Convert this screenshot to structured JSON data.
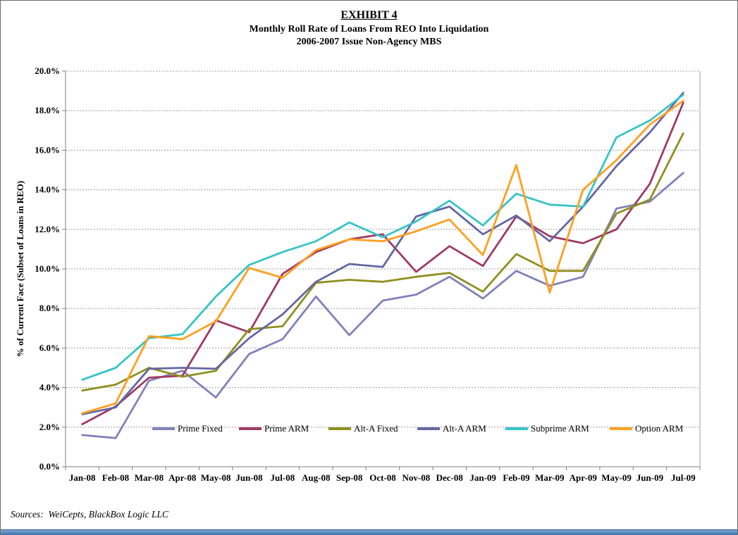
{
  "page": {
    "title": "EXHIBIT 4",
    "subtitle1": "Monthly Roll Rate of Loans From REO Into Liquidation",
    "subtitle2": "2006-2007 Issue Non-Agency MBS",
    "source_note": "Sources:  WeiCepts, BlackBox Logic LLC"
  },
  "chart_data": {
    "type": "line",
    "title": "Monthly Roll Rate of Loans From REO Into Liquidation",
    "subtitle": "2006-2007 Issue Non-Agency MBS",
    "xlabel": "",
    "ylabel": "% of Current Face (Subset of Loans in REO)",
    "ylim": [
      0,
      20
    ],
    "ytick_step": 2,
    "ytick_format": "0.0%",
    "grid": "horizontal-dashed",
    "legend_position": "inside-bottom",
    "categories": [
      "Jan-08",
      "Feb-08",
      "Mar-08",
      "Apr-08",
      "May-08",
      "Jun-08",
      "Jul-08",
      "Aug-08",
      "Sep-08",
      "Oct-08",
      "Nov-08",
      "Dec-08",
      "Jan-09",
      "Feb-09",
      "Mar-09",
      "Apr-09",
      "May-09",
      "Jun-09",
      "Jul-09"
    ],
    "series": [
      {
        "name": "Prime Fixed",
        "color": "#8182BA",
        "values": [
          1.6,
          1.45,
          4.35,
          4.85,
          3.5,
          5.7,
          6.45,
          8.6,
          6.65,
          8.4,
          8.7,
          9.6,
          8.5,
          9.9,
          9.15,
          9.6,
          13.05,
          13.4,
          14.85
        ]
      },
      {
        "name": "Prime ARM",
        "color": "#9E3A64",
        "values": [
          2.15,
          3.05,
          4.5,
          4.6,
          7.4,
          6.8,
          9.75,
          10.85,
          11.5,
          11.75,
          9.85,
          11.15,
          10.15,
          12.65,
          11.65,
          11.3,
          12.0,
          14.3,
          18.4
        ]
      },
      {
        "name": "Alt-A Fixed",
        "color": "#8F8F1F",
        "values": [
          3.85,
          4.15,
          5.0,
          4.55,
          4.85,
          6.95,
          7.1,
          9.3,
          9.45,
          9.35,
          9.6,
          9.8,
          8.85,
          10.75,
          9.9,
          9.9,
          12.8,
          13.5,
          16.85
        ]
      },
      {
        "name": "Alt-A ARM",
        "color": "#6466A3",
        "values": [
          2.65,
          3.0,
          4.95,
          5.0,
          4.95,
          6.5,
          7.7,
          9.35,
          10.25,
          10.1,
          12.65,
          13.15,
          11.75,
          12.7,
          11.4,
          13.15,
          15.2,
          16.9,
          18.9
        ]
      },
      {
        "name": "Subprime ARM",
        "color": "#35C4C8",
        "values": [
          4.4,
          5.0,
          6.5,
          6.7,
          8.6,
          10.2,
          10.85,
          11.4,
          12.35,
          11.6,
          12.4,
          13.45,
          12.2,
          13.8,
          13.25,
          13.15,
          16.65,
          17.5,
          18.8
        ]
      },
      {
        "name": "Option ARM",
        "color": "#FFA01E",
        "values": [
          2.7,
          3.2,
          6.6,
          6.45,
          7.35,
          10.05,
          9.55,
          10.95,
          11.5,
          11.4,
          11.9,
          12.5,
          10.7,
          15.25,
          8.8,
          14.0,
          15.5,
          17.3,
          18.5
        ]
      }
    ]
  }
}
